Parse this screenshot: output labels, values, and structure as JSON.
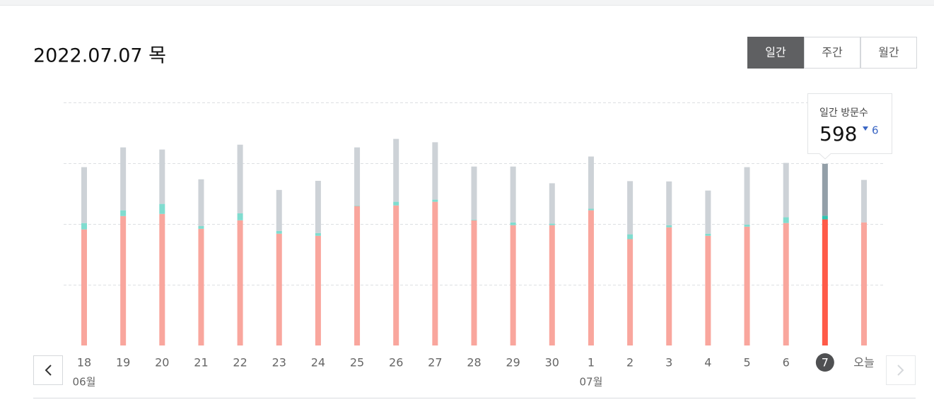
{
  "header": {
    "title": "2022.07.07 목",
    "tabs": [
      "일간",
      "주간",
      "월간"
    ],
    "active_tab": 0
  },
  "chart_data": {
    "type": "bar",
    "stacked": true,
    "categories": [
      "18",
      "19",
      "20",
      "21",
      "22",
      "23",
      "24",
      "25",
      "26",
      "27",
      "28",
      "29",
      "30",
      "1",
      "2",
      "3",
      "4",
      "5",
      "6",
      "7",
      "오늘"
    ],
    "month_labels": [
      "06월",
      null,
      null,
      null,
      null,
      null,
      null,
      null,
      null,
      null,
      null,
      null,
      null,
      "07월",
      null,
      null,
      null,
      null,
      null,
      null,
      null
    ],
    "series": [
      {
        "color": "#f9a69d",
        "selected_color": "#ff5a48",
        "values": [
          382,
          426,
          433,
          384,
          412,
          368,
          361,
          459,
          461,
          473,
          412,
          396,
          396,
          445,
          350,
          389,
          361,
          391,
          403,
          415,
          405
        ]
      },
      {
        "color": "#80dccf",
        "selected_color": "#2fc4b0",
        "values": [
          21,
          19,
          33,
          9,
          23,
          9,
          9,
          2,
          12,
          7,
          2,
          9,
          5,
          5,
          16,
          7,
          7,
          7,
          19,
          12,
          0
        ]
      },
      {
        "color": "#cdd2d7",
        "selected_color": "#939fa8",
        "values": [
          184,
          207,
          179,
          154,
          226,
          135,
          172,
          191,
          207,
          189,
          175,
          184,
          133,
          172,
          175,
          144,
          142,
          189,
          179,
          171,
          140
        ]
      }
    ],
    "ylim": [
      0,
      800
    ],
    "yticks": [
      200,
      400,
      600,
      800
    ],
    "grid": true,
    "selected_index": 19,
    "tooltip": {
      "label": "일간 방문수",
      "value": 598,
      "change": 6
    }
  }
}
